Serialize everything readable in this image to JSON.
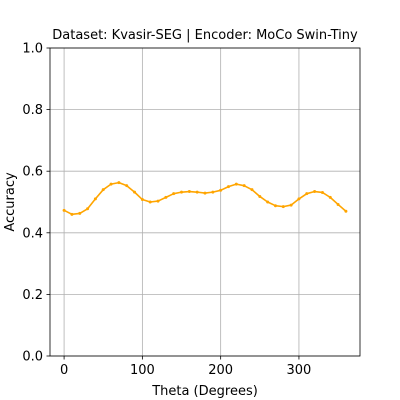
{
  "chart_data": {
    "type": "line",
    "title": "Dataset: Kvasir-SEG | Encoder: MoCo Swin-Tiny",
    "xlabel": "Theta (Degrees)",
    "ylabel": "Accuracy",
    "xlim": [
      -18,
      378
    ],
    "ylim": [
      0.0,
      1.0
    ],
    "xticks": [
      0,
      100,
      200,
      300
    ],
    "yticks": [
      0.0,
      0.2,
      0.4,
      0.6,
      0.8,
      1.0
    ],
    "xtick_labels": [
      "0",
      "100",
      "200",
      "300"
    ],
    "ytick_labels": [
      "0.0",
      "0.2",
      "0.4",
      "0.6",
      "0.8",
      "1.0"
    ],
    "grid": true,
    "series": [
      {
        "color": "#ffa500",
        "marker": "point",
        "x": [
          0,
          10,
          20,
          30,
          40,
          50,
          60,
          70,
          80,
          90,
          100,
          110,
          120,
          130,
          140,
          150,
          160,
          170,
          180,
          190,
          200,
          210,
          220,
          230,
          240,
          250,
          260,
          270,
          280,
          290,
          300,
          310,
          320,
          330,
          340,
          350,
          360
        ],
        "y": [
          0.473,
          0.46,
          0.463,
          0.478,
          0.51,
          0.54,
          0.558,
          0.563,
          0.553,
          0.532,
          0.508,
          0.5,
          0.503,
          0.515,
          0.527,
          0.532,
          0.534,
          0.532,
          0.529,
          0.532,
          0.538,
          0.55,
          0.558,
          0.553,
          0.54,
          0.518,
          0.5,
          0.488,
          0.485,
          0.49,
          0.51,
          0.527,
          0.534,
          0.531,
          0.515,
          0.492,
          0.47
        ]
      }
    ]
  }
}
